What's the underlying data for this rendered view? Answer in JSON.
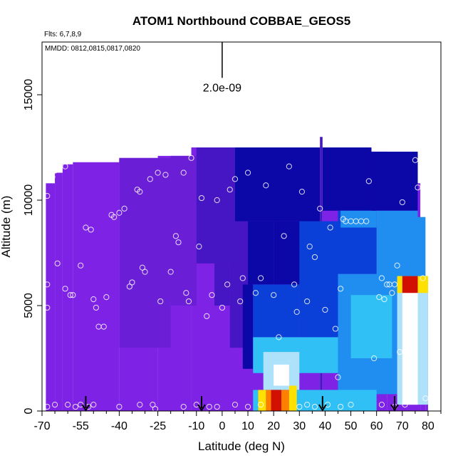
{
  "chart_data": {
    "type": "heatmap",
    "title": "ATOM1 Northbound COBBAE_GEOS5",
    "flights_note": "Flts: 6,7,8,9",
    "dates_note": "MMDD: 0812,0815,0817,0820",
    "xlabel": "Latitude (deg N)",
    "ylabel": "Altitude (m)",
    "xlim": [
      -70,
      85
    ],
    "ylim": [
      0,
      17500
    ],
    "x_tick_values": [
      -70,
      -55,
      -40,
      -25,
      -10,
      0,
      10,
      20,
      30,
      40,
      50,
      60,
      70,
      80
    ],
    "x_tick_labels": [
      "-70",
      "-55",
      "-40",
      "-25",
      "-10",
      "0",
      "10",
      "20",
      "30",
      "40",
      "50",
      "60",
      "70",
      "80"
    ],
    "x_minor_ticks": [
      -65,
      -60,
      -50,
      -45,
      -35,
      -30,
      -20,
      -15,
      -5,
      5,
      15,
      25,
      35,
      45,
      55,
      65,
      75,
      85
    ],
    "y_tick_values": [
      0,
      5000,
      10000,
      15000
    ],
    "y_tick_labels": [
      "0",
      "5000",
      "10000",
      "15000"
    ],
    "scale_bar": {
      "label": "2.0e-09",
      "x": 0,
      "y_bottom": 15800,
      "y_top": 17500
    },
    "arrows": [
      -53,
      -8,
      39,
      67
    ],
    "colors": {
      "purple": "#7e22e6",
      "violet": "#6a1ed6",
      "indigo": "#4616c4",
      "navy": "#0c08a8",
      "blue": "#0a3fd8",
      "azure": "#1f8ef0",
      "cyan": "#30c0f5",
      "lightblue": "#aee2fb",
      "white": "#ffffff",
      "yellow": "#ffe100",
      "orange": "#ff8000",
      "red": "#d21000"
    },
    "columns": [
      {
        "x0": -68.5,
        "x1": -65,
        "top": 10800,
        "c": "purple"
      },
      {
        "x0": -65,
        "x1": -62,
        "top": 11300,
        "c": "purple"
      },
      {
        "x0": -62,
        "x1": -58,
        "top": 11700,
        "c": "purple"
      },
      {
        "x0": -58,
        "x1": -40,
        "top": 11800,
        "c": "purple"
      },
      {
        "x0": -40,
        "x1": -25,
        "top": 12000,
        "c": "purple"
      },
      {
        "x0": -25,
        "x1": -12,
        "top": 12100,
        "c": "purple"
      },
      {
        "x0": -12,
        "x1": 38,
        "top": 12500,
        "c": "purple"
      },
      {
        "x0": 38,
        "x1": 39,
        "top": 13000,
        "c": "indigo"
      },
      {
        "x0": 39,
        "x1": 58,
        "top": 12500,
        "c": "purple"
      },
      {
        "x0": 58,
        "x1": 64,
        "top": 12300,
        "c": "purple"
      },
      {
        "x0": 64,
        "x1": 72,
        "top": 12100,
        "c": "purple"
      },
      {
        "x0": 72,
        "x1": 76,
        "top": 11900,
        "c": "purple"
      },
      {
        "x0": 76,
        "x1": 77,
        "top": 10800,
        "c": "purple"
      },
      {
        "x0": 77,
        "x1": 79,
        "top": 6400,
        "c": "purple"
      },
      {
        "x0": 79,
        "x1": 80,
        "top": 6300,
        "c": "purple"
      }
    ],
    "cells": [
      {
        "x0": -40,
        "x1": -20,
        "y0": 3000,
        "y1": 12000,
        "c": "violet"
      },
      {
        "x0": -20,
        "x1": -10,
        "y0": 5000,
        "y1": 12100,
        "c": "violet"
      },
      {
        "x0": -10,
        "x1": 5,
        "y0": 7000,
        "y1": 12500,
        "c": "indigo"
      },
      {
        "x0": -3,
        "x1": 3,
        "y0": 5000,
        "y1": 7000,
        "c": "indigo"
      },
      {
        "x0": 3,
        "x1": 10,
        "y0": 3000,
        "y1": 12500,
        "c": "indigo"
      },
      {
        "x0": 5,
        "x1": 38,
        "y0": 9000,
        "y1": 12500,
        "c": "navy"
      },
      {
        "x0": 10,
        "x1": 20,
        "y0": 6000,
        "y1": 9000,
        "c": "navy"
      },
      {
        "x0": 20,
        "x1": 38,
        "y0": 6000,
        "y1": 9000,
        "c": "navy"
      },
      {
        "x0": 8,
        "x1": 12,
        "y0": 2000,
        "y1": 6000,
        "c": "navy"
      },
      {
        "x0": 12,
        "x1": 30,
        "y0": 3500,
        "y1": 6000,
        "c": "blue"
      },
      {
        "x0": 30,
        "x1": 45,
        "y0": 2500,
        "y1": 9000,
        "c": "blue"
      },
      {
        "x0": 39,
        "x1": 58,
        "y0": 9500,
        "y1": 12500,
        "c": "navy"
      },
      {
        "x0": 45,
        "x1": 60,
        "y0": 6500,
        "y1": 9500,
        "c": "blue"
      },
      {
        "x0": 46,
        "x1": 60,
        "y0": 8700,
        "y1": 9500,
        "c": "azure"
      },
      {
        "x0": 58,
        "x1": 76,
        "y0": 9500,
        "y1": 12300,
        "c": "navy"
      },
      {
        "x0": 60,
        "x1": 76,
        "y0": 6400,
        "y1": 9500,
        "c": "azure"
      },
      {
        "x0": 76,
        "x1": 79,
        "y0": 6400,
        "y1": 9200,
        "c": "azure"
      },
      {
        "x0": 45,
        "x1": 68,
        "y0": 800,
        "y1": 6500,
        "c": "azure"
      },
      {
        "x0": 50,
        "x1": 66,
        "y0": 2500,
        "y1": 5500,
        "c": "cyan"
      },
      {
        "x0": 12,
        "x1": 45,
        "y0": 1800,
        "y1": 3500,
        "c": "cyan"
      },
      {
        "x0": 16,
        "x1": 30,
        "y0": 1000,
        "y1": 2800,
        "c": "lightblue"
      },
      {
        "x0": 20,
        "x1": 26,
        "y0": 1200,
        "y1": 2200,
        "c": "white"
      },
      {
        "x0": 12,
        "x1": 60,
        "y0": 0,
        "y1": 1000,
        "c": "cyan"
      },
      {
        "x0": 14,
        "x1": 17,
        "y0": 0,
        "y1": 1000,
        "c": "yellow"
      },
      {
        "x0": 17,
        "x1": 19,
        "y0": 0,
        "y1": 1000,
        "c": "orange"
      },
      {
        "x0": 19,
        "x1": 23,
        "y0": 0,
        "y1": 1000,
        "c": "red"
      },
      {
        "x0": 23,
        "x1": 26,
        "y0": 0,
        "y1": 1000,
        "c": "orange"
      },
      {
        "x0": 26,
        "x1": 29,
        "y0": 0,
        "y1": 1200,
        "c": "yellow"
      },
      {
        "x0": 68,
        "x1": 80,
        "y0": 300,
        "y1": 6400,
        "c": "lightblue"
      },
      {
        "x0": 70,
        "x1": 76,
        "y0": 300,
        "y1": 5800,
        "c": "white"
      },
      {
        "x0": 68,
        "x1": 70,
        "y0": 5600,
        "y1": 6400,
        "c": "yellow"
      },
      {
        "x0": 70,
        "x1": 76,
        "y0": 5600,
        "y1": 6400,
        "c": "red"
      },
      {
        "x0": 76,
        "x1": 80,
        "y0": 5600,
        "y1": 6400,
        "c": "yellow"
      }
    ],
    "points": [
      [
        -68,
        10200
      ],
      [
        -67,
        11000
      ],
      [
        -66,
        11100
      ],
      [
        -65,
        11400
      ],
      [
        -61,
        11600
      ],
      [
        -68,
        6000
      ],
      [
        -68,
        4900
      ],
      [
        -64,
        7000
      ],
      [
        -61,
        5800
      ],
      [
        -59,
        5500
      ],
      [
        -58,
        5500
      ],
      [
        -55,
        6900
      ],
      [
        -53,
        8700
      ],
      [
        -51,
        8600
      ],
      [
        -50,
        5300
      ],
      [
        -49,
        4900
      ],
      [
        -48,
        4000
      ],
      [
        -46,
        4000
      ],
      [
        -45,
        5400
      ],
      [
        -43,
        9300
      ],
      [
        -42,
        9200
      ],
      [
        -40,
        9400
      ],
      [
        -38,
        9600
      ],
      [
        -36,
        5900
      ],
      [
        -35,
        6100
      ],
      [
        -33,
        10500
      ],
      [
        -32,
        10400
      ],
      [
        -31,
        6800
      ],
      [
        -30,
        6600
      ],
      [
        -28,
        11000
      ],
      [
        -25,
        11300
      ],
      [
        -24,
        5200
      ],
      [
        -22,
        11200
      ],
      [
        -20,
        6600
      ],
      [
        -18,
        8300
      ],
      [
        -17,
        8000
      ],
      [
        -15,
        11300
      ],
      [
        -14,
        5600
      ],
      [
        -13,
        5200
      ],
      [
        -12,
        12000
      ],
      [
        -9,
        7800
      ],
      [
        -8,
        10100
      ],
      [
        -6,
        4500
      ],
      [
        -4,
        5500
      ],
      [
        -2,
        10000
      ],
      [
        0,
        4900
      ],
      [
        2,
        6000
      ],
      [
        3,
        10500
      ],
      [
        5,
        11000
      ],
      [
        7,
        5200
      ],
      [
        8,
        6300
      ],
      [
        10,
        11300
      ],
      [
        13,
        5600
      ],
      [
        15,
        6300
      ],
      [
        17,
        10700
      ],
      [
        20,
        5500
      ],
      [
        22,
        3500
      ],
      [
        24,
        8300
      ],
      [
        26,
        11600
      ],
      [
        28,
        6000
      ],
      [
        29,
        4700
      ],
      [
        31,
        10400
      ],
      [
        33,
        5200
      ],
      [
        34,
        7800
      ],
      [
        36,
        7300
      ],
      [
        38,
        9600
      ],
      [
        40,
        4800
      ],
      [
        42,
        8700
      ],
      [
        44,
        3900
      ],
      [
        45,
        1600
      ],
      [
        46,
        5800
      ],
      [
        47,
        9100
      ],
      [
        48,
        9000
      ],
      [
        50,
        9000
      ],
      [
        52,
        9000
      ],
      [
        54,
        9000
      ],
      [
        56,
        9000
      ],
      [
        57,
        10900
      ],
      [
        59,
        2500
      ],
      [
        61,
        5400
      ],
      [
        62,
        6300
      ],
      [
        63,
        5300
      ],
      [
        64,
        6000
      ],
      [
        65,
        6000
      ],
      [
        66,
        5600
      ],
      [
        67,
        6000
      ],
      [
        68,
        6900
      ],
      [
        69,
        2800
      ],
      [
        70,
        9900
      ],
      [
        72,
        2000
      ],
      [
        73,
        800
      ],
      [
        74,
        5400
      ],
      [
        75,
        11900
      ],
      [
        76,
        10600
      ],
      [
        78,
        6300
      ],
      [
        79,
        600
      ],
      [
        -68,
        200
      ],
      [
        -65,
        300
      ],
      [
        -60,
        300
      ],
      [
        -57,
        200
      ],
      [
        -55,
        300
      ],
      [
        -52,
        200
      ],
      [
        -50,
        300
      ],
      [
        -40,
        200
      ],
      [
        -32,
        300
      ],
      [
        -27,
        300
      ],
      [
        -26,
        100
      ],
      [
        -15,
        200
      ],
      [
        -10,
        300
      ],
      [
        -5,
        200
      ],
      [
        -2,
        200
      ],
      [
        5,
        300
      ],
      [
        10,
        200
      ],
      [
        15,
        300
      ],
      [
        23,
        1500
      ],
      [
        30,
        200
      ],
      [
        33,
        300
      ],
      [
        36,
        200
      ],
      [
        41,
        300
      ],
      [
        46,
        200
      ],
      [
        50,
        300
      ],
      [
        62,
        300
      ],
      [
        67,
        200
      ],
      [
        71,
        300
      ]
    ]
  }
}
